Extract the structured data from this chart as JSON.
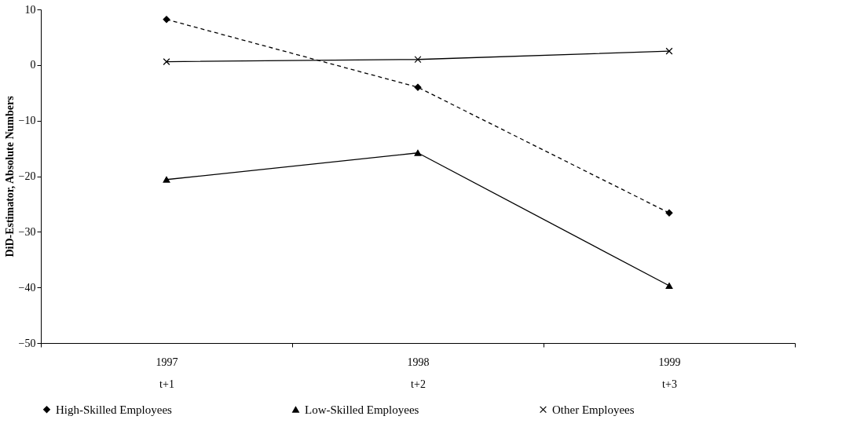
{
  "chart_data": {
    "type": "line",
    "categories": [
      "1997\nt+1",
      "1998\nt+2",
      "1999\nt+3"
    ],
    "ylabel": "DiD-Estimator, Absolute Numbers",
    "ylim": [
      -50,
      10
    ],
    "yticks": [
      -50,
      -40,
      -30,
      -20,
      -10,
      0,
      10
    ],
    "grid": false,
    "legend": "bottom",
    "series": [
      {
        "name": "High-Skilled Employees",
        "color": "#000000",
        "marker": "diamond",
        "line_style": "dashed",
        "values": [
          8.2,
          -4.0,
          -26.6
        ]
      },
      {
        "name": "Low-Skilled Employees",
        "color": "#000000",
        "marker": "triangle",
        "line_style": "solid",
        "values": [
          -20.6,
          -15.8,
          -39.7
        ]
      },
      {
        "name": "Other Employees",
        "color": "#000000",
        "marker": "cross",
        "line_style": "solid",
        "values": [
          0.6,
          1.0,
          2.5
        ]
      }
    ]
  }
}
